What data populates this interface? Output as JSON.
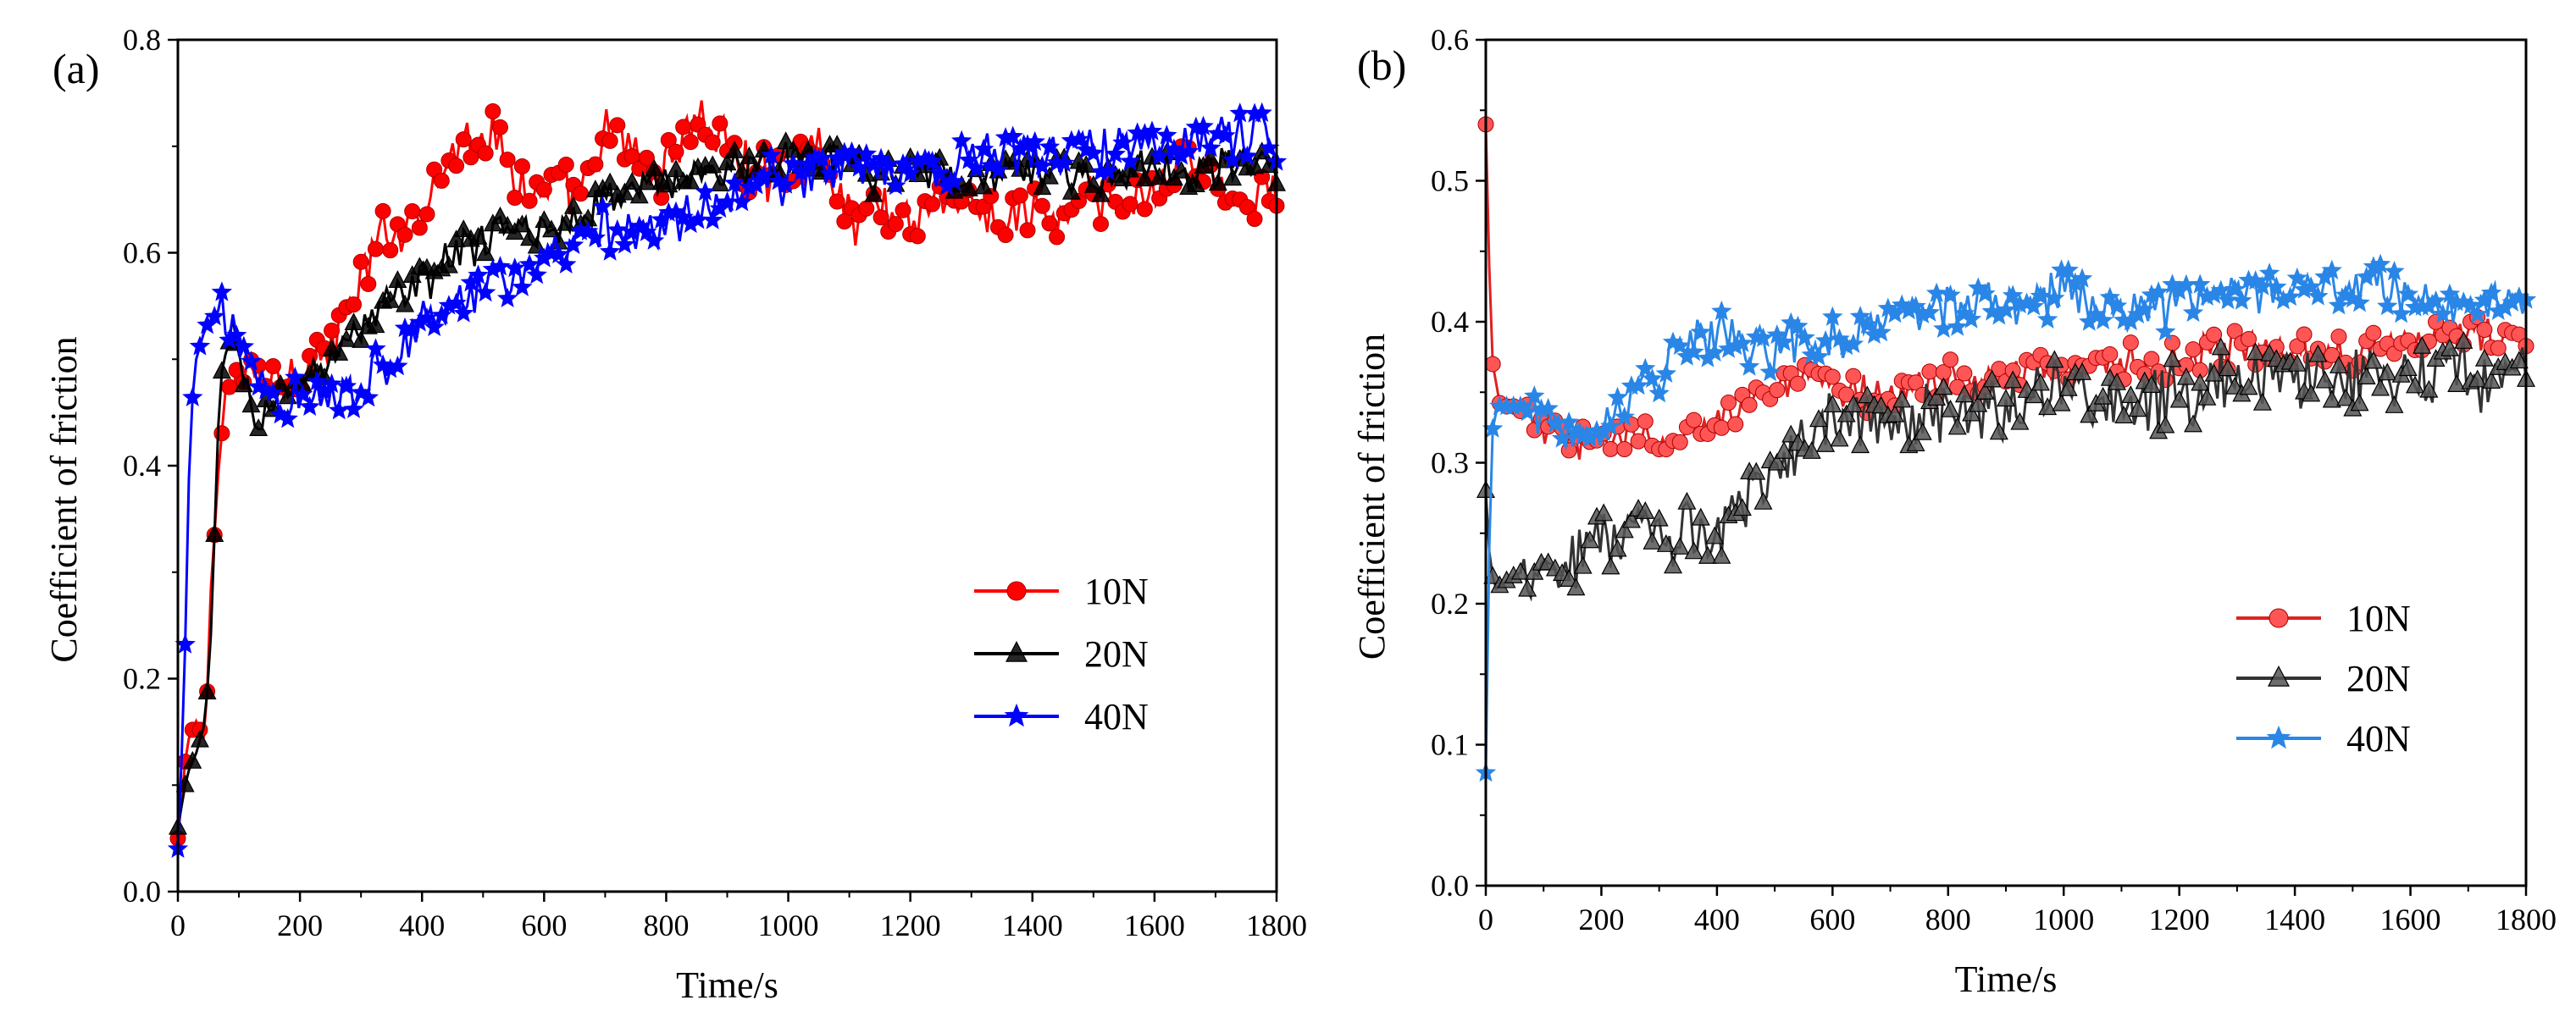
{
  "figure": {
    "panel_labels": [
      "(a)",
      "(b)"
    ]
  },
  "chart_data": [
    {
      "id": "a",
      "type": "line",
      "panel_label": "(a)",
      "xlabel": "Time/s",
      "ylabel": "Coefficient of friction",
      "xlim": [
        0,
        1800
      ],
      "ylim": [
        0,
        0.8
      ],
      "xticks": [
        0,
        200,
        400,
        600,
        800,
        1000,
        1200,
        1400,
        1600,
        1800
      ],
      "yticks": [
        0.0,
        0.2,
        0.4,
        0.6,
        0.8
      ],
      "ytick_labels": [
        "0.0",
        "0.2",
        "0.4",
        "0.6",
        "0.8"
      ],
      "legend_position": "middle-right",
      "series": [
        {
          "name": "10N",
          "color": "#ff0000",
          "line_color": "#ff0000",
          "marker": "circle",
          "anchors": [
            [
              0,
              0.05
            ],
            [
              15,
              0.14
            ],
            [
              30,
              0.16
            ],
            [
              45,
              0.14
            ],
            [
              55,
              0.3
            ],
            [
              65,
              0.37
            ],
            [
              75,
              0.45
            ],
            [
              90,
              0.49
            ],
            [
              120,
              0.48
            ],
            [
              160,
              0.48
            ],
            [
              200,
              0.49
            ],
            [
              250,
              0.51
            ],
            [
              300,
              0.57
            ],
            [
              340,
              0.62
            ],
            [
              380,
              0.63
            ],
            [
              420,
              0.67
            ],
            [
              460,
              0.7
            ],
            [
              500,
              0.72
            ],
            [
              540,
              0.69
            ],
            [
              580,
              0.65
            ],
            [
              620,
              0.66
            ],
            [
              660,
              0.65
            ],
            [
              700,
              0.71
            ],
            [
              740,
              0.7
            ],
            [
              780,
              0.67
            ],
            [
              820,
              0.7
            ],
            [
              850,
              0.73
            ],
            [
              900,
              0.7
            ],
            [
              950,
              0.67
            ],
            [
              1000,
              0.68
            ],
            [
              1050,
              0.7
            ],
            [
              1100,
              0.63
            ],
            [
              1150,
              0.65
            ],
            [
              1200,
              0.63
            ],
            [
              1250,
              0.66
            ],
            [
              1300,
              0.64
            ],
            [
              1350,
              0.63
            ],
            [
              1400,
              0.64
            ],
            [
              1450,
              0.63
            ],
            [
              1500,
              0.65
            ],
            [
              1550,
              0.64
            ],
            [
              1600,
              0.66
            ],
            [
              1650,
              0.7
            ],
            [
              1700,
              0.66
            ],
            [
              1750,
              0.65
            ],
            [
              1800,
              0.66
            ]
          ],
          "noise": 0.022
        },
        {
          "name": "20N",
          "color": "#000000",
          "line_color": "#000000",
          "marker": "triangle",
          "anchors": [
            [
              0,
              0.06
            ],
            [
              15,
              0.11
            ],
            [
              30,
              0.13
            ],
            [
              45,
              0.16
            ],
            [
              55,
              0.25
            ],
            [
              65,
              0.42
            ],
            [
              75,
              0.5
            ],
            [
              90,
              0.52
            ],
            [
              110,
              0.48
            ],
            [
              130,
              0.44
            ],
            [
              160,
              0.46
            ],
            [
              200,
              0.48
            ],
            [
              250,
              0.5
            ],
            [
              300,
              0.53
            ],
            [
              350,
              0.56
            ],
            [
              400,
              0.57
            ],
            [
              450,
              0.6
            ],
            [
              500,
              0.61
            ],
            [
              550,
              0.62
            ],
            [
              600,
              0.62
            ],
            [
              650,
              0.63
            ],
            [
              700,
              0.65
            ],
            [
              750,
              0.66
            ],
            [
              800,
              0.67
            ],
            [
              850,
              0.67
            ],
            [
              900,
              0.68
            ],
            [
              950,
              0.68
            ],
            [
              1000,
              0.69
            ],
            [
              1050,
              0.69
            ],
            [
              1100,
              0.68
            ],
            [
              1150,
              0.67
            ],
            [
              1200,
              0.68
            ],
            [
              1300,
              0.67
            ],
            [
              1400,
              0.68
            ],
            [
              1500,
              0.67
            ],
            [
              1600,
              0.68
            ],
            [
              1700,
              0.68
            ],
            [
              1800,
              0.68
            ]
          ],
          "noise": 0.016
        },
        {
          "name": "40N",
          "color": "#0000ff",
          "line_color": "#0000ff",
          "marker": "star",
          "anchors": [
            [
              0,
              0.04
            ],
            [
              10,
              0.18
            ],
            [
              20,
              0.44
            ],
            [
              30,
              0.5
            ],
            [
              45,
              0.53
            ],
            [
              60,
              0.54
            ],
            [
              90,
              0.53
            ],
            [
              120,
              0.5
            ],
            [
              150,
              0.47
            ],
            [
              200,
              0.46
            ],
            [
              250,
              0.47
            ],
            [
              300,
              0.48
            ],
            [
              350,
              0.5
            ],
            [
              400,
              0.53
            ],
            [
              450,
              0.55
            ],
            [
              500,
              0.57
            ],
            [
              550,
              0.58
            ],
            [
              600,
              0.59
            ],
            [
              650,
              0.6
            ],
            [
              700,
              0.62
            ],
            [
              750,
              0.62
            ],
            [
              800,
              0.63
            ],
            [
              850,
              0.64
            ],
            [
              900,
              0.65
            ],
            [
              950,
              0.66
            ],
            [
              1000,
              0.67
            ],
            [
              1100,
              0.68
            ],
            [
              1200,
              0.68
            ],
            [
              1300,
              0.69
            ],
            [
              1400,
              0.69
            ],
            [
              1500,
              0.7
            ],
            [
              1600,
              0.7
            ],
            [
              1700,
              0.71
            ],
            [
              1800,
              0.71
            ]
          ],
          "noise": 0.02
        }
      ]
    },
    {
      "id": "b",
      "type": "line",
      "panel_label": "(b)",
      "xlabel": "Time/s",
      "ylabel": "Coefficient of friction",
      "xlim": [
        0,
        1800
      ],
      "ylim": [
        0,
        0.6
      ],
      "xticks": [
        0,
        200,
        400,
        600,
        800,
        1000,
        1200,
        1400,
        1600,
        1800
      ],
      "yticks": [
        0.0,
        0.1,
        0.2,
        0.3,
        0.4,
        0.5,
        0.6
      ],
      "ytick_labels": [
        "0.0",
        "0.1",
        "0.2",
        "0.3",
        "0.4",
        "0.5",
        "0.6"
      ],
      "legend_position": "lower-right",
      "series": [
        {
          "name": "10N",
          "color": "#ff5555",
          "line_color": "#dd2222",
          "marker": "circle",
          "anchors": [
            [
              0,
              0.54
            ],
            [
              5,
              0.45
            ],
            [
              12,
              0.37
            ],
            [
              25,
              0.34
            ],
            [
              50,
              0.34
            ],
            [
              80,
              0.33
            ],
            [
              120,
              0.32
            ],
            [
              160,
              0.31
            ],
            [
              200,
              0.32
            ],
            [
              250,
              0.32
            ],
            [
              300,
              0.31
            ],
            [
              350,
              0.32
            ],
            [
              400,
              0.33
            ],
            [
              450,
              0.35
            ],
            [
              500,
              0.35
            ],
            [
              550,
              0.36
            ],
            [
              600,
              0.35
            ],
            [
              700,
              0.35
            ],
            [
              800,
              0.36
            ],
            [
              900,
              0.36
            ],
            [
              1000,
              0.37
            ],
            [
              1100,
              0.37
            ],
            [
              1200,
              0.37
            ],
            [
              1300,
              0.38
            ],
            [
              1400,
              0.38
            ],
            [
              1500,
              0.38
            ],
            [
              1600,
              0.39
            ],
            [
              1700,
              0.39
            ],
            [
              1800,
              0.39
            ]
          ],
          "noise": 0.012
        },
        {
          "name": "20N",
          "color": "#555555",
          "line_color": "#333333",
          "marker": "triangle",
          "anchors": [
            [
              0,
              0.28
            ],
            [
              5,
              0.24
            ],
            [
              15,
              0.21
            ],
            [
              50,
              0.22
            ],
            [
              100,
              0.23
            ],
            [
              150,
              0.23
            ],
            [
              200,
              0.25
            ],
            [
              250,
              0.25
            ],
            [
              300,
              0.24
            ],
            [
              350,
              0.25
            ],
            [
              400,
              0.25
            ],
            [
              450,
              0.28
            ],
            [
              500,
              0.29
            ],
            [
              550,
              0.31
            ],
            [
              600,
              0.33
            ],
            [
              700,
              0.33
            ],
            [
              800,
              0.34
            ],
            [
              900,
              0.34
            ],
            [
              1000,
              0.35
            ],
            [
              1100,
              0.34
            ],
            [
              1200,
              0.35
            ],
            [
              1300,
              0.36
            ],
            [
              1400,
              0.36
            ],
            [
              1500,
              0.36
            ],
            [
              1600,
              0.37
            ],
            [
              1700,
              0.36
            ],
            [
              1800,
              0.36
            ]
          ],
          "noise": 0.02
        },
        {
          "name": "40N",
          "color": "#2a86e6",
          "line_color": "#2a86e6",
          "marker": "star",
          "anchors": [
            [
              0,
              0.08
            ],
            [
              4,
              0.2
            ],
            [
              10,
              0.32
            ],
            [
              20,
              0.34
            ],
            [
              60,
              0.34
            ],
            [
              120,
              0.33
            ],
            [
              160,
              0.32
            ],
            [
              200,
              0.33
            ],
            [
              250,
              0.35
            ],
            [
              300,
              0.36
            ],
            [
              330,
              0.39
            ],
            [
              400,
              0.39
            ],
            [
              450,
              0.38
            ],
            [
              500,
              0.38
            ],
            [
              600,
              0.39
            ],
            [
              700,
              0.4
            ],
            [
              800,
              0.41
            ],
            [
              900,
              0.41
            ],
            [
              1000,
              0.42
            ],
            [
              1100,
              0.41
            ],
            [
              1200,
              0.41
            ],
            [
              1300,
              0.42
            ],
            [
              1400,
              0.42
            ],
            [
              1500,
              0.43
            ],
            [
              1600,
              0.42
            ],
            [
              1700,
              0.41
            ],
            [
              1800,
              0.42
            ]
          ],
          "noise": 0.014
        }
      ]
    }
  ]
}
